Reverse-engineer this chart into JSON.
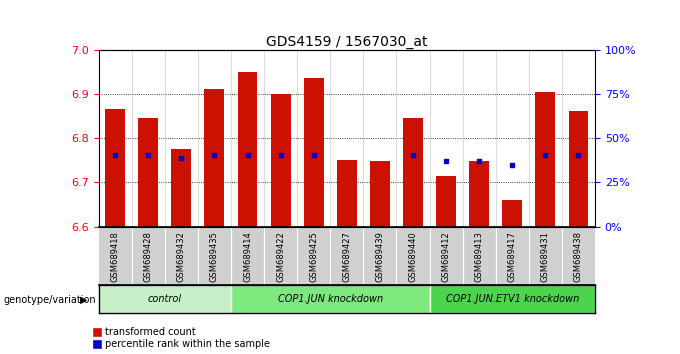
{
  "title": "GDS4159 / 1567030_at",
  "samples": [
    "GSM689418",
    "GSM689428",
    "GSM689432",
    "GSM689435",
    "GSM689414",
    "GSM689422",
    "GSM689425",
    "GSM689427",
    "GSM689439",
    "GSM689440",
    "GSM689412",
    "GSM689413",
    "GSM689417",
    "GSM689431",
    "GSM689438"
  ],
  "red_values": [
    6.865,
    6.845,
    6.775,
    6.91,
    6.95,
    6.9,
    6.935,
    6.75,
    6.748,
    6.845,
    6.715,
    6.748,
    6.66,
    6.905,
    6.862
  ],
  "blue_values": [
    6.762,
    6.762,
    6.755,
    6.762,
    6.762,
    6.762,
    6.762,
    null,
    null,
    6.762,
    6.748,
    6.748,
    6.74,
    6.762,
    6.762
  ],
  "ymin": 6.6,
  "ymax": 7.0,
  "yticks": [
    6.6,
    6.7,
    6.8,
    6.9,
    7.0
  ],
  "right_ylabels": [
    "0%",
    "25%",
    "50%",
    "75%",
    "100%"
  ],
  "right_ytick_vals": [
    6.6,
    6.7,
    6.8,
    6.9,
    7.0
  ],
  "groups": [
    {
      "label": "control",
      "start": 0,
      "end": 4,
      "color": "#c8f0c8"
    },
    {
      "label": "COP1.JUN knockdown",
      "start": 4,
      "end": 10,
      "color": "#7de87d"
    },
    {
      "label": "COP1.JUN.ETV1 knockdown",
      "start": 10,
      "end": 15,
      "color": "#4cd44c"
    }
  ],
  "bar_bottom": 6.6,
  "bar_color": "#cc1100",
  "blue_color": "#0000cc",
  "bar_width": 0.6,
  "xlabel": "genotype/variation",
  "legend_red": "transformed count",
  "legend_blue": "percentile rank within the sample",
  "background_color": "#ffffff",
  "plot_bg": "#ffffff",
  "title_fontsize": 10,
  "tick_label_fontsize": 8,
  "names_bg": "#d0d0d0"
}
